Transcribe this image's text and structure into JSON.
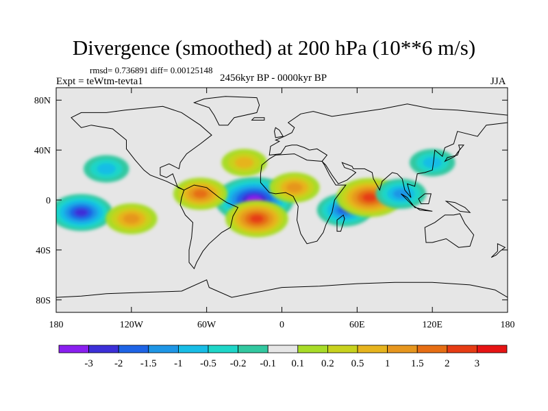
{
  "chart_data": {
    "type": "heatmap",
    "title": "Divergence (smoothed) at 200 hPa (10**6 m/s)",
    "stats": "rmsd= 0.736891 diff= 0.00125148",
    "period": "2456kyr BP - 0000kyr BP",
    "experiment": "Expt = teWtm-tevta1",
    "season": "JJA",
    "x_axis": {
      "label": "",
      "range": [
        -180,
        180
      ],
      "ticks": [
        {
          "value": -180,
          "label": "180"
        },
        {
          "value": -120,
          "label": "120W"
        },
        {
          "value": -60,
          "label": "60W"
        },
        {
          "value": 0,
          "label": "0"
        },
        {
          "value": 60,
          "label": "60E"
        },
        {
          "value": 120,
          "label": "120E"
        },
        {
          "value": 180,
          "label": "180"
        }
      ]
    },
    "y_axis": {
      "label": "",
      "range": [
        -90,
        90
      ],
      "ticks": [
        {
          "value": 80,
          "label": "80N"
        },
        {
          "value": 40,
          "label": "40N"
        },
        {
          "value": 0,
          "label": "0"
        },
        {
          "value": -40,
          "label": "40S"
        },
        {
          "value": -80,
          "label": "80S"
        }
      ]
    },
    "colorbar": {
      "levels": [
        "-3",
        "-2",
        "-1.5",
        "-1",
        "-0.5",
        "-0.2",
        "-0.1",
        "0.1",
        "0.2",
        "0.5",
        "1",
        "1.5",
        "2",
        "3"
      ],
      "colors": [
        "#8a1ff0",
        "#3c2fd8",
        "#1e64e6",
        "#1e96e6",
        "#18bde6",
        "#1ed6c8",
        "#32c8a0",
        "#e6e6e6",
        "#a8dc28",
        "#c8d21e",
        "#e6b41e",
        "#e6961e",
        "#e66e14",
        "#e63c14",
        "#e61414"
      ]
    },
    "anomalies": [
      {
        "lon": -22,
        "lat": 0,
        "value": -3.5
      },
      {
        "lon": -160,
        "lat": -10,
        "value": -2.2
      },
      {
        "lon": 50,
        "lat": -8,
        "value": -1.6
      },
      {
        "lon": 120,
        "lat": 30,
        "value": -0.8
      },
      {
        "lon": -20,
        "lat": -15,
        "value": 2.2
      },
      {
        "lon": -65,
        "lat": 5,
        "value": 1.5
      },
      {
        "lon": 70,
        "lat": 2,
        "value": 2.5
      },
      {
        "lon": 10,
        "lat": 10,
        "value": 1.2
      },
      {
        "lon": -120,
        "lat": -15,
        "value": 1.3
      },
      {
        "lon": -30,
        "lat": 30,
        "value": 0.8
      },
      {
        "lon": 95,
        "lat": 5,
        "value": -1.2
      },
      {
        "lon": -140,
        "lat": 25,
        "value": -0.8
      }
    ]
  }
}
